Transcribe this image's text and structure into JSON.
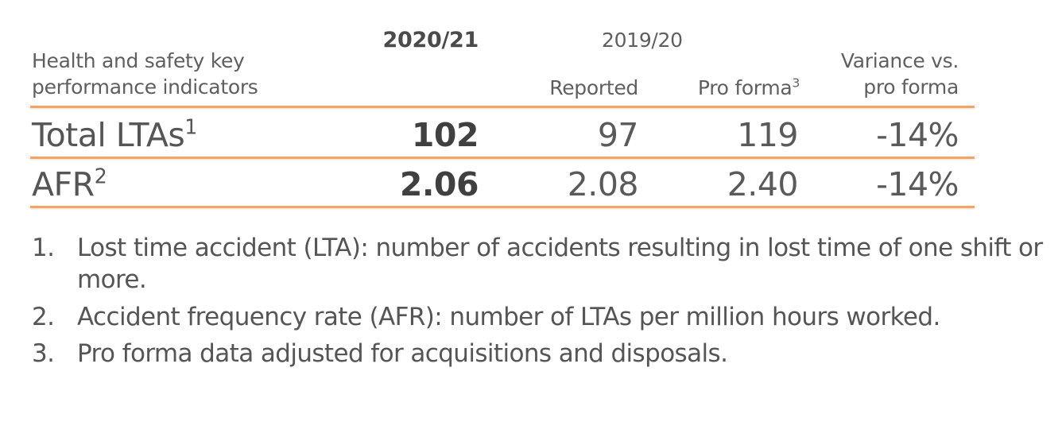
{
  "header": {
    "indicator_label_line1": "Health and safety key",
    "indicator_label_line2": "performance indicators",
    "year_current": "2020/21",
    "year_prior": "2019/20",
    "col_reported": "Reported",
    "col_proforma": "Pro forma",
    "col_proforma_sup": "3",
    "col_variance_line1": "Variance vs.",
    "col_variance_line2": "pro forma"
  },
  "rows": [
    {
      "label": "Total LTAs",
      "label_sup": "1",
      "current": "102",
      "reported": "97",
      "proforma": "119",
      "variance": "-14%"
    },
    {
      "label": "AFR",
      "label_sup": "2",
      "current": "2.06",
      "reported": "2.08",
      "proforma": "2.40",
      "variance": "-14%"
    }
  ],
  "footnotes": [
    {
      "number": "1.",
      "text": "Lost time accident (LTA): number of accidents resulting in lost time of one shift or more."
    },
    {
      "number": "2.",
      "text": "Accident frequency rate (AFR): number of LTAs per million hours worked."
    },
    {
      "number": "3.",
      "text": "Pro forma data adjusted for acquisitions and disposals."
    }
  ],
  "colors": {
    "rule": "#f2a46a",
    "text": "#555555"
  }
}
